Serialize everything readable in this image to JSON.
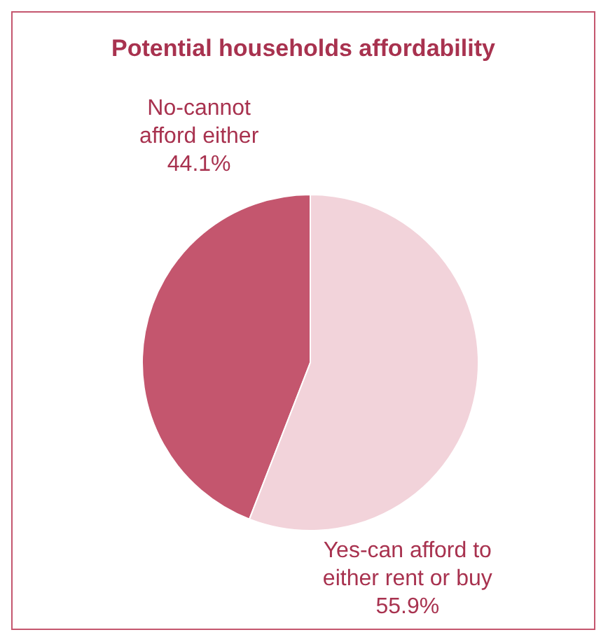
{
  "chart_data": {
    "type": "pie",
    "title": "Potential households affordability",
    "categories": [
      "No-cannot afford either",
      "Yes-can afford to either rent or buy"
    ],
    "values": [
      44.1,
      55.9
    ],
    "value_labels": [
      "44.1%",
      "55.9%"
    ],
    "colors": [
      "#c4566e",
      "#f2d3da"
    ]
  }
}
